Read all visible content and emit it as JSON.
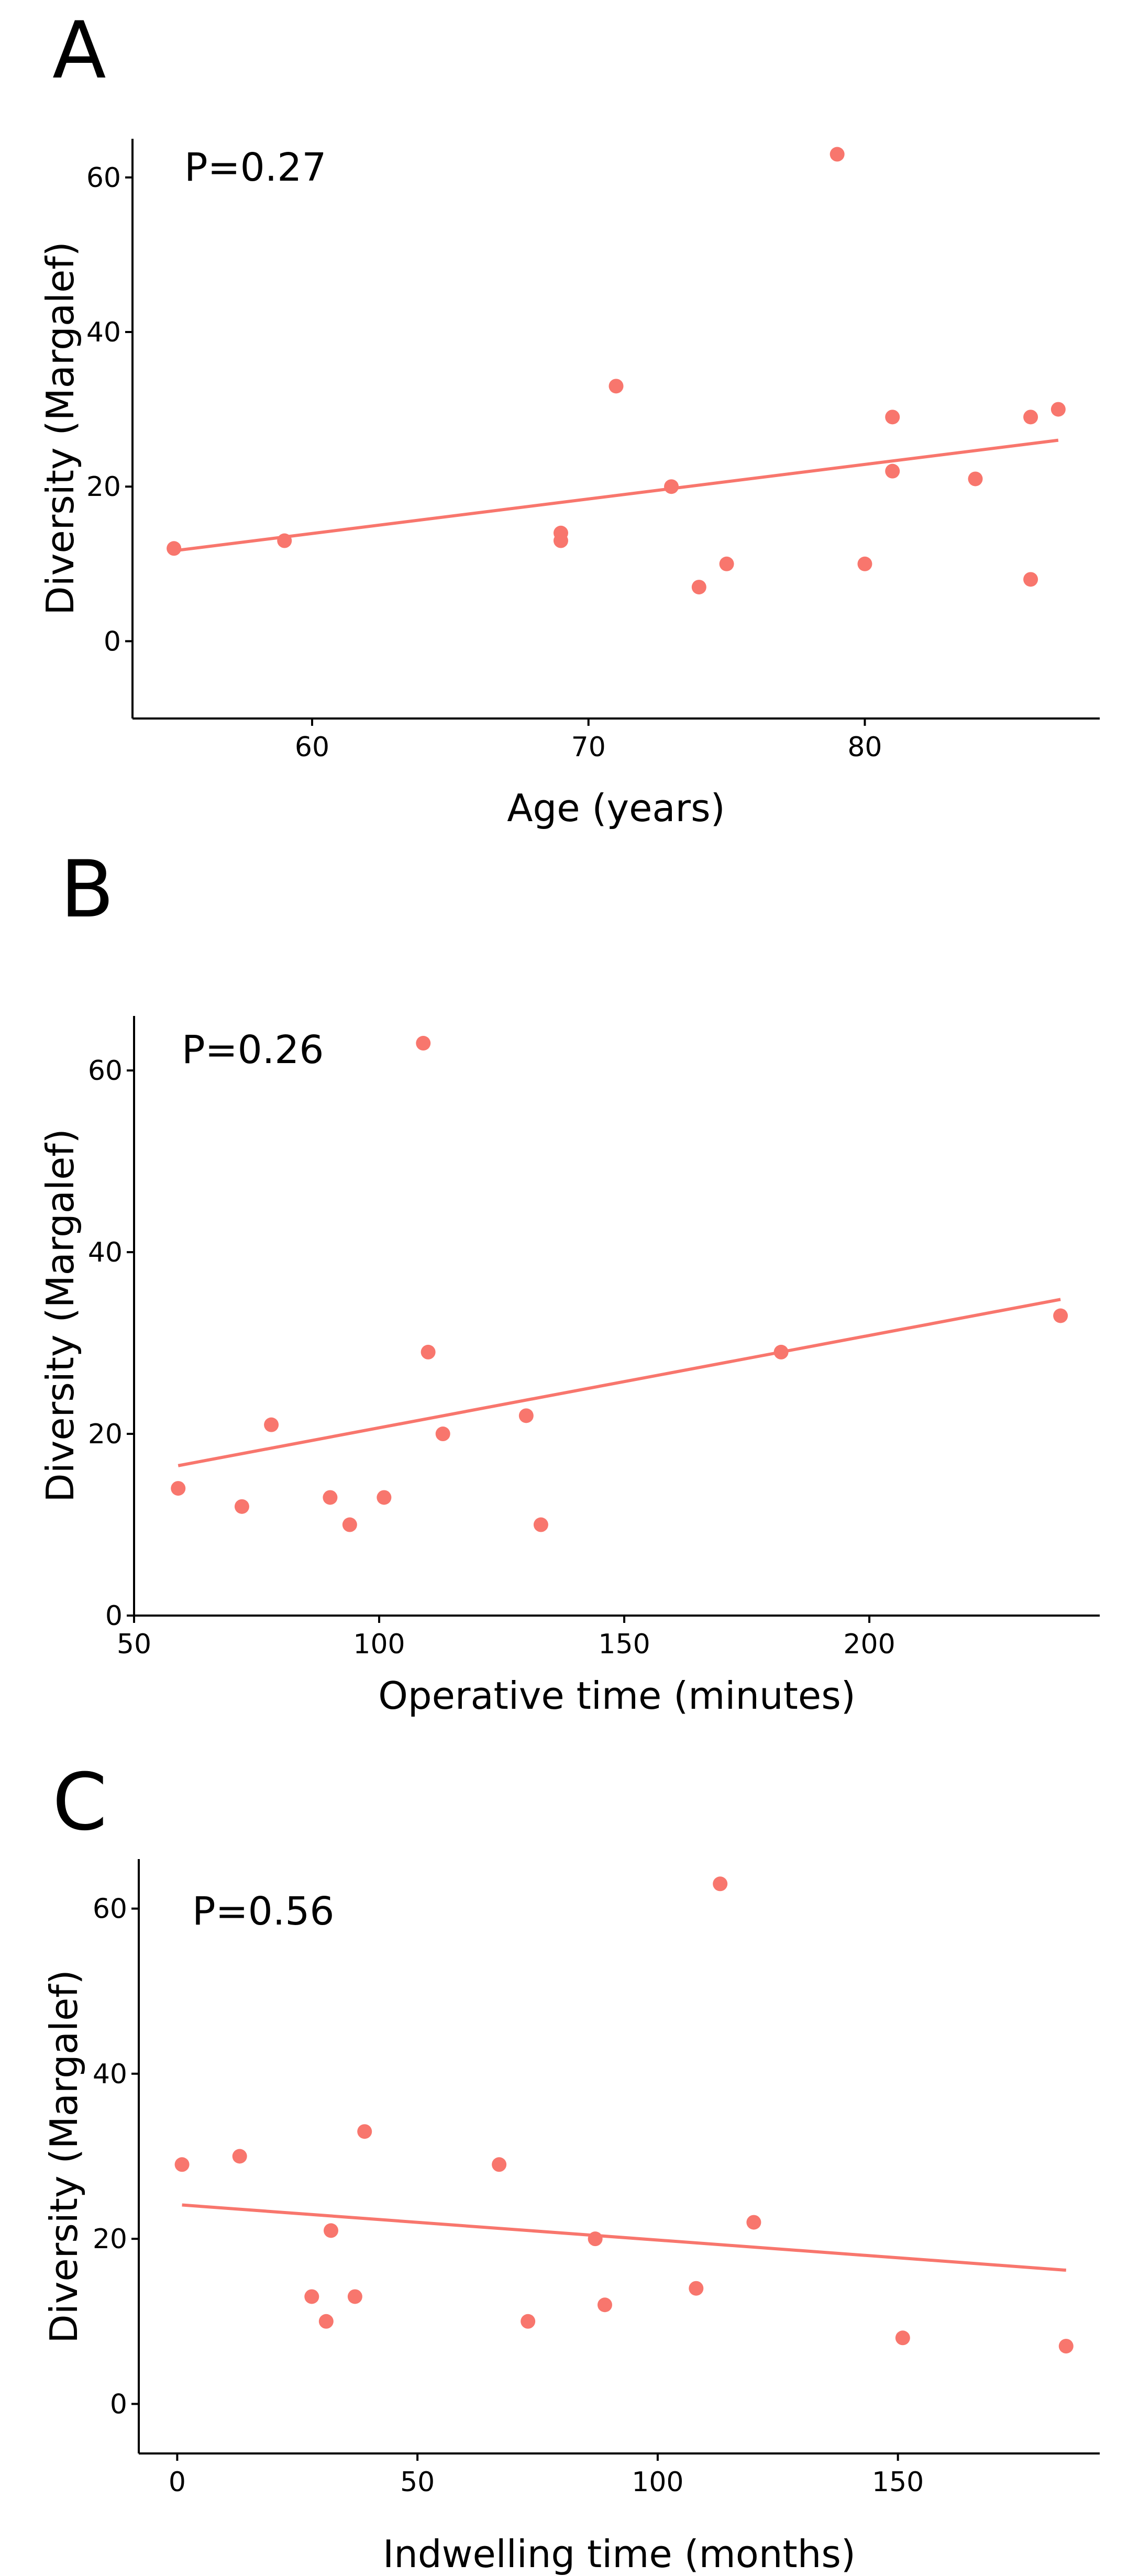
{
  "colors": {
    "points": "#F8766D",
    "fit_line": "#F8766D",
    "axis": "#000000",
    "background": "#FFFFFF"
  },
  "chart_data": [
    {
      "type": "scatter",
      "panel_label": "A",
      "annotation": "P=0.27",
      "xlabel": "Age (years)",
      "ylabel": "Diversity (Margalef)",
      "xlim": [
        53.5,
        88.5
      ],
      "ylim": [
        -10,
        65
      ],
      "xticks": [
        60,
        70,
        80
      ],
      "yticks": [
        0,
        20,
        40,
        60
      ],
      "points": [
        {
          "x": 55,
          "y": 12
        },
        {
          "x": 59,
          "y": 13
        },
        {
          "x": 69,
          "y": 14
        },
        {
          "x": 69,
          "y": 13
        },
        {
          "x": 71,
          "y": 33
        },
        {
          "x": 73,
          "y": 20
        },
        {
          "x": 74,
          "y": 7
        },
        {
          "x": 75,
          "y": 10
        },
        {
          "x": 79,
          "y": 63
        },
        {
          "x": 80,
          "y": 10
        },
        {
          "x": 81,
          "y": 29
        },
        {
          "x": 81,
          "y": 22
        },
        {
          "x": 84,
          "y": 21
        },
        {
          "x": 86,
          "y": 29
        },
        {
          "x": 86,
          "y": 8
        },
        {
          "x": 87,
          "y": 30
        }
      ],
      "fit_line": {
        "x": [
          55,
          87
        ],
        "y": [
          11.7,
          26
        ]
      }
    },
    {
      "type": "scatter",
      "panel_label": "B",
      "annotation": "P=0.26",
      "xlabel": "Operative time (minutes)",
      "ylabel": "Diversity (Margalef)",
      "xlim": [
        50,
        247
      ],
      "ylim": [
        0,
        66
      ],
      "xticks": [
        50,
        100,
        150,
        200
      ],
      "yticks": [
        0,
        20,
        40,
        60
      ],
      "points": [
        {
          "x": 59,
          "y": 14
        },
        {
          "x": 72,
          "y": 12
        },
        {
          "x": 78,
          "y": 21
        },
        {
          "x": 90,
          "y": 13
        },
        {
          "x": 94,
          "y": 10
        },
        {
          "x": 101,
          "y": 13
        },
        {
          "x": 109,
          "y": 63
        },
        {
          "x": 110,
          "y": 29
        },
        {
          "x": 113,
          "y": 20
        },
        {
          "x": 130,
          "y": 22
        },
        {
          "x": 133,
          "y": 10
        },
        {
          "x": 182,
          "y": 29
        },
        {
          "x": 239,
          "y": 33
        }
      ],
      "fit_line": {
        "x": [
          59,
          239
        ],
        "y": [
          16.5,
          34.8
        ]
      }
    },
    {
      "type": "scatter",
      "panel_label": "C",
      "annotation": "P=0.56",
      "xlabel": "Indwelling time (months)",
      "ylabel": "Diversity (Margalef)",
      "xlim": [
        -8,
        192
      ],
      "ylim": [
        -6,
        66
      ],
      "xticks": [
        0,
        50,
        100,
        150
      ],
      "yticks": [
        0,
        20,
        40,
        60
      ],
      "points": [
        {
          "x": 1,
          "y": 29
        },
        {
          "x": 13,
          "y": 30
        },
        {
          "x": 28,
          "y": 13
        },
        {
          "x": 31,
          "y": 10
        },
        {
          "x": 32,
          "y": 21
        },
        {
          "x": 37,
          "y": 13
        },
        {
          "x": 39,
          "y": 33
        },
        {
          "x": 67,
          "y": 29
        },
        {
          "x": 73,
          "y": 10
        },
        {
          "x": 87,
          "y": 20
        },
        {
          "x": 89,
          "y": 12
        },
        {
          "x": 108,
          "y": 14
        },
        {
          "x": 113,
          "y": 63
        },
        {
          "x": 120,
          "y": 22
        },
        {
          "x": 151,
          "y": 8
        },
        {
          "x": 185,
          "y": 7
        }
      ],
      "fit_line": {
        "x": [
          1,
          185
        ],
        "y": [
          24.1,
          16.2
        ]
      }
    }
  ]
}
